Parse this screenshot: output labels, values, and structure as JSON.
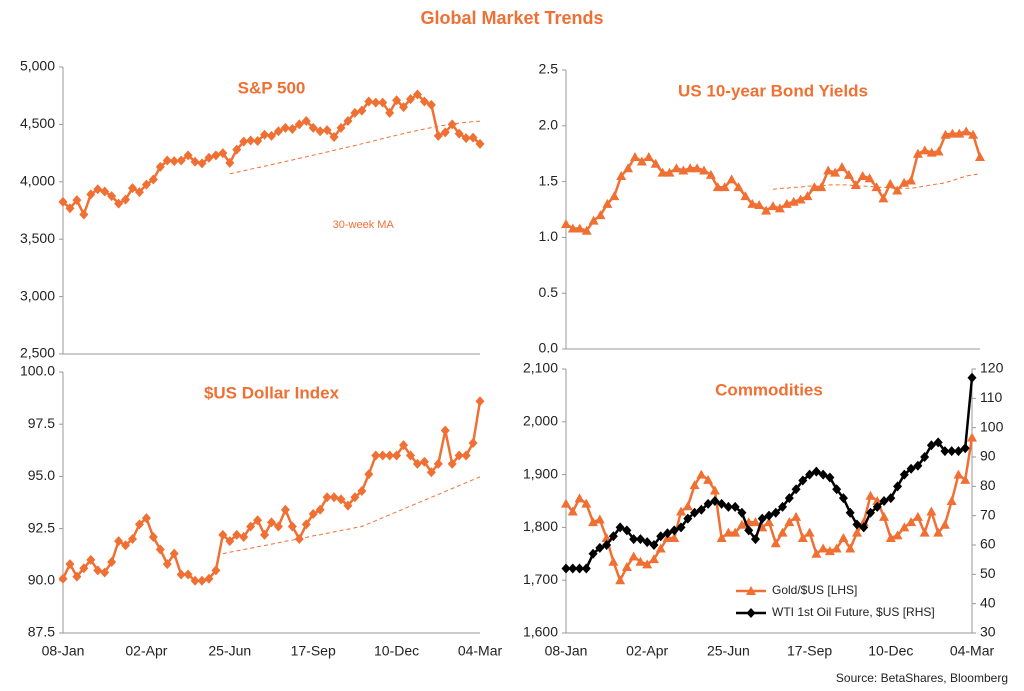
{
  "title": "Global Market Trends",
  "source": "Source: BetaShares, Bloomberg",
  "chart_data": [
    {
      "type": "line",
      "title": "S&P 500",
      "ylim": [
        2500,
        5000
      ],
      "yticks": [
        {
          "value": 2500,
          "label": "2,500"
        },
        {
          "value": 3000,
          "label": "3,000"
        },
        {
          "value": 3500,
          "label": "3,500"
        },
        {
          "value": 4000,
          "label": "4,000"
        },
        {
          "value": 4500,
          "label": "4,500"
        },
        {
          "value": 5000,
          "label": "5,000"
        }
      ],
      "series": [
        {
          "color": "#f07034",
          "marker": "diamond",
          "values": [
            3825,
            3770,
            3840,
            3715,
            3890,
            3935,
            3915,
            3875,
            3810,
            3845,
            3945,
            3910,
            3975,
            4020,
            4130,
            4185,
            4180,
            4185,
            4230,
            4175,
            4160,
            4210,
            4230,
            4250,
            4165,
            4280,
            4350,
            4360,
            4355,
            4410,
            4400,
            4440,
            4470,
            4460,
            4500,
            4530,
            4470,
            4440,
            4450,
            4390,
            4470,
            4530,
            4600,
            4620,
            4700,
            4690,
            4690,
            4600,
            4710,
            4650,
            4720,
            4760,
            4700,
            4670,
            4400,
            4430,
            4500,
            4420,
            4380,
            4385,
            4330
          ]
        },
        {
          "name": "30-week MA",
          "color": "#f07034",
          "dash": true,
          "values": [
            null,
            null,
            null,
            null,
            null,
            null,
            null,
            null,
            null,
            null,
            null,
            null,
            null,
            null,
            null,
            null,
            null,
            null,
            null,
            null,
            null,
            null,
            null,
            null,
            4070,
            4083,
            4096,
            4110,
            4123,
            4136,
            4150,
            4163,
            4177,
            4190,
            4204,
            4218,
            4232,
            4246,
            4260,
            4274,
            4288,
            4302,
            4316,
            4331,
            4346,
            4361,
            4376,
            4391,
            4406,
            4420,
            4434,
            4447,
            4460,
            4472,
            4484,
            4494,
            4503,
            4511,
            4518,
            4524,
            4528
          ]
        }
      ]
    },
    {
      "type": "line",
      "title": "US 10-year Bond Yields",
      "ylim": [
        0,
        2.5
      ],
      "yticks": [
        {
          "value": 0,
          "label": "0.0"
        },
        0.5,
        {
          "value": 1,
          "label": "1.0"
        },
        1.5,
        {
          "value": 2,
          "label": "2.0"
        },
        2.5
      ],
      "series": [
        {
          "color": "#f07034",
          "marker": "triangle",
          "values": [
            1.12,
            1.08,
            1.08,
            1.06,
            1.15,
            1.2,
            1.3,
            1.37,
            1.55,
            1.62,
            1.72,
            1.68,
            1.72,
            1.66,
            1.58,
            1.58,
            1.62,
            1.6,
            1.62,
            1.62,
            1.6,
            1.56,
            1.45,
            1.45,
            1.52,
            1.45,
            1.37,
            1.3,
            1.29,
            1.24,
            1.28,
            1.26,
            1.3,
            1.32,
            1.34,
            1.37,
            1.45,
            1.45,
            1.6,
            1.58,
            1.63,
            1.56,
            1.47,
            1.55,
            1.53,
            1.45,
            1.35,
            1.48,
            1.42,
            1.49,
            1.51,
            1.75,
            1.78,
            1.76,
            1.77,
            1.92,
            1.93,
            1.93,
            1.95,
            1.92,
            1.72
          ]
        },
        {
          "color": "#f07034",
          "dash": true,
          "values": [
            null,
            null,
            null,
            null,
            null,
            null,
            null,
            null,
            null,
            null,
            null,
            null,
            null,
            null,
            null,
            null,
            null,
            null,
            null,
            null,
            null,
            null,
            null,
            null,
            null,
            null,
            null,
            null,
            null,
            null,
            1.43,
            1.44,
            1.44,
            1.45,
            1.45,
            1.46,
            1.46,
            1.46,
            1.47,
            1.47,
            1.47,
            1.47,
            1.46,
            1.46,
            1.46,
            1.45,
            1.45,
            1.44,
            1.44,
            1.44,
            1.44,
            1.45,
            1.46,
            1.47,
            1.48,
            1.49,
            1.51,
            1.53,
            1.55,
            1.56,
            1.57
          ]
        }
      ]
    },
    {
      "type": "line",
      "title": "$US Dollar Index",
      "categories": [
        "08-Jan",
        null,
        null,
        null,
        null,
        null,
        null,
        null,
        null,
        null,
        null,
        null,
        "02-Apr",
        null,
        null,
        null,
        null,
        null,
        null,
        null,
        null,
        null,
        null,
        null,
        "25-Jun",
        null,
        null,
        null,
        null,
        null,
        null,
        null,
        null,
        null,
        null,
        null,
        "17-Sep",
        null,
        null,
        null,
        null,
        null,
        null,
        null,
        null,
        null,
        null,
        null,
        "10-Dec",
        null,
        null,
        null,
        null,
        null,
        null,
        null,
        null,
        null,
        null,
        null,
        "04-Mar"
      ],
      "ylim": [
        87.5,
        100
      ],
      "yticks": [
        87.5,
        {
          "value": 90,
          "label": "90.0"
        },
        92.5,
        {
          "value": 95,
          "label": "95.0"
        },
        97.5,
        {
          "value": 100,
          "label": "100.0"
        }
      ],
      "series": [
        {
          "color": "#f07034",
          "marker": "diamond",
          "values": [
            90.1,
            90.8,
            90.2,
            90.6,
            91.0,
            90.5,
            90.4,
            90.9,
            91.9,
            91.7,
            92.0,
            92.7,
            93.0,
            92.1,
            91.5,
            90.8,
            91.3,
            90.3,
            90.3,
            90.0,
            90.0,
            90.1,
            90.5,
            92.2,
            91.9,
            92.2,
            92.1,
            92.6,
            92.9,
            92.2,
            92.8,
            92.6,
            93.4,
            92.6,
            92.0,
            92.7,
            93.2,
            93.4,
            94.0,
            94.0,
            93.9,
            93.6,
            94.0,
            94.3,
            95.1,
            96.0,
            96.0,
            96.0,
            96.0,
            96.5,
            96.0,
            95.6,
            95.7,
            95.2,
            95.6,
            97.2,
            95.6,
            96.0,
            96.0,
            96.6,
            98.6
          ]
        },
        {
          "color": "#f07034",
          "dash": true,
          "values": [
            null,
            null,
            null,
            null,
            null,
            null,
            null,
            null,
            null,
            null,
            null,
            null,
            null,
            null,
            null,
            null,
            null,
            null,
            null,
            null,
            null,
            null,
            null,
            91.3,
            91.37,
            91.43,
            91.5,
            91.56,
            91.63,
            91.69,
            91.76,
            91.82,
            91.89,
            91.95,
            92.02,
            92.08,
            92.15,
            92.21,
            92.28,
            92.34,
            92.41,
            92.47,
            92.54,
            92.6,
            92.74,
            92.88,
            93.02,
            93.16,
            93.3,
            93.44,
            93.58,
            93.72,
            93.86,
            94.0,
            94.14,
            94.28,
            94.42,
            94.56,
            94.7,
            94.84,
            94.98
          ]
        }
      ]
    },
    {
      "type": "line",
      "title": "Commodities",
      "legend": "bottom-right",
      "categories": [
        "08-Jan",
        null,
        null,
        null,
        null,
        null,
        null,
        null,
        null,
        null,
        null,
        null,
        "02-Apr",
        null,
        null,
        null,
        null,
        null,
        null,
        null,
        null,
        null,
        null,
        null,
        "25-Jun",
        null,
        null,
        null,
        null,
        null,
        null,
        null,
        null,
        null,
        null,
        null,
        "17-Sep",
        null,
        null,
        null,
        null,
        null,
        null,
        null,
        null,
        null,
        null,
        null,
        "10-Dec",
        null,
        null,
        null,
        null,
        null,
        null,
        null,
        null,
        null,
        null,
        null,
        "04-Mar"
      ],
      "ylim": [
        1600,
        2100
      ],
      "yticks": [
        {
          "value": 1600,
          "label": "1,600"
        },
        {
          "value": 1700,
          "label": "1,700"
        },
        {
          "value": 1800,
          "label": "1,800"
        },
        {
          "value": 1900,
          "label": "1,900"
        },
        {
          "value": 2000,
          "label": "2,000"
        },
        {
          "value": 2100,
          "label": "2,100"
        }
      ],
      "y2lim": [
        30,
        120
      ],
      "y2ticks": [
        30,
        40,
        50,
        60,
        70,
        80,
        90,
        100,
        110,
        120
      ],
      "series": [
        {
          "name": "Gold/$US [LHS]",
          "color": "#f07034",
          "marker": "triangle",
          "values": [
            1845,
            1830,
            1855,
            1845,
            1810,
            1815,
            1780,
            1735,
            1700,
            1725,
            1745,
            1735,
            1730,
            1740,
            1760,
            1780,
            1780,
            1830,
            1840,
            1880,
            1900,
            1890,
            1870,
            1780,
            1790,
            1790,
            1805,
            1810,
            1810,
            1800,
            1810,
            1770,
            1790,
            1810,
            1820,
            1780,
            1790,
            1750,
            1760,
            1755,
            1760,
            1780,
            1760,
            1790,
            1810,
            1860,
            1850,
            1820,
            1780,
            1785,
            1800,
            1810,
            1820,
            1790,
            1830,
            1790,
            1805,
            1850,
            1900,
            1890,
            1970
          ]
        },
        {
          "name": "WTI 1st Oil Future, $US [RHS]",
          "color": "#000000",
          "marker": "diamond",
          "axis": "y2",
          "values": [
            52,
            52,
            52,
            52,
            57,
            59,
            60,
            63,
            66,
            65,
            62,
            62,
            61,
            60,
            63,
            64,
            65,
            66,
            69,
            71,
            72,
            74,
            75,
            74,
            73,
            73,
            71,
            65,
            62,
            69,
            70,
            71,
            73,
            76,
            79,
            82,
            84,
            85,
            84,
            83,
            79,
            76,
            71,
            67,
            66,
            71,
            73,
            75,
            76,
            80,
            84,
            86,
            87,
            90,
            94,
            95,
            92,
            92,
            92,
            93,
            117
          ]
        }
      ]
    }
  ]
}
